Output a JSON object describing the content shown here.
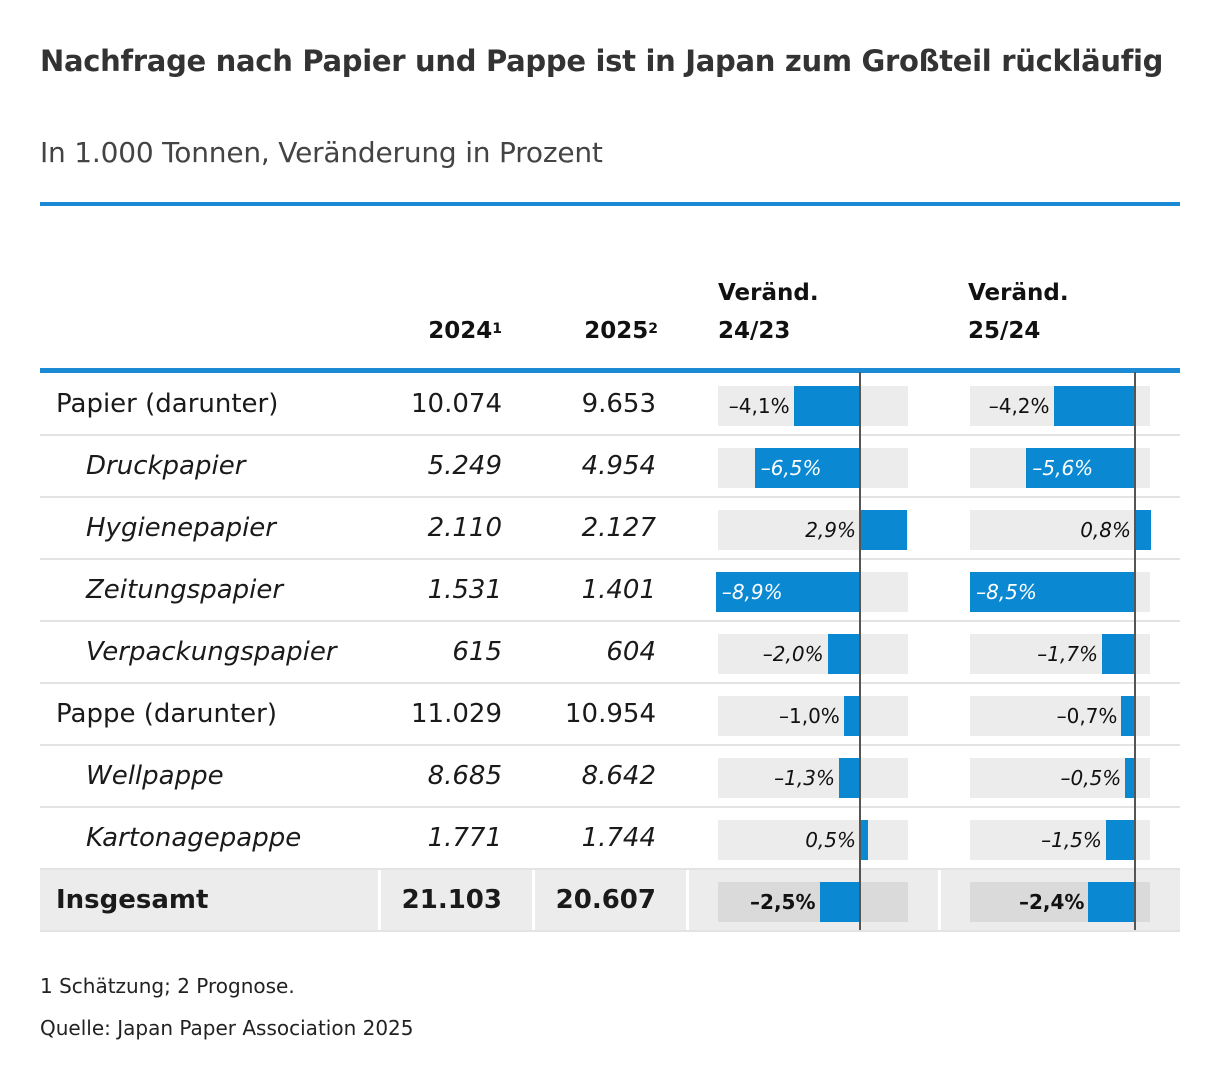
{
  "title": "Nachfrage nach Papier und Pappe ist in Japan zum Großteil rückläufig",
  "subtitle": "In 1.000 Tonnen, Veränderung in Prozent",
  "headers": {
    "col_2024": "2024",
    "col_2024_sup": "1",
    "col_2025": "2025",
    "col_2025_sup": "2",
    "chg1_line1": "Veränd.",
    "chg1_line2": "24/23",
    "chg2_line1": "Veränd.",
    "chg2_line2": "25/24"
  },
  "footnote": "1 Schätzung; 2 Prognose.",
  "source": "Quelle: Japan Paper Association 2025",
  "colors": {
    "accent": "#1a8ad4",
    "bar": "#0a89d2",
    "track": "#ececec"
  },
  "chart_data": {
    "type": "table",
    "columns": [
      "",
      "2024",
      "2025",
      "Veränd. 24/23",
      "Veränd. 25/24"
    ],
    "rows": [
      {
        "name": "Papier (darunter)",
        "style": "group",
        "v2024": "10.074",
        "v2025": "9.653",
        "chg1": -4.1,
        "chg1_label": "–4,1%",
        "chg2": -4.2,
        "chg2_label": "–4,2%"
      },
      {
        "name": "Druckpapier",
        "style": "sub",
        "v2024": "5.249",
        "v2025": "4.954",
        "chg1": -6.5,
        "chg1_label": "–6,5%",
        "chg2": -5.6,
        "chg2_label": "–5,6%"
      },
      {
        "name": "Hygienepapier",
        "style": "sub",
        "v2024": "2.110",
        "v2025": "2.127",
        "chg1": 2.9,
        "chg1_label": "2,9%",
        "chg2": 0.8,
        "chg2_label": "0,8%"
      },
      {
        "name": "Zeitungspapier",
        "style": "sub",
        "v2024": "1.531",
        "v2025": "1.401",
        "chg1": -8.9,
        "chg1_label": "–8,9%",
        "chg2": -8.5,
        "chg2_label": "–8,5%"
      },
      {
        "name": "Verpackungspapier",
        "style": "sub",
        "v2024": "615",
        "v2025": "604",
        "chg1": -2.0,
        "chg1_label": "–2,0%",
        "chg2": -1.7,
        "chg2_label": "–1,7%"
      },
      {
        "name": "Pappe (darunter)",
        "style": "group",
        "v2024": "11.029",
        "v2025": "10.954",
        "chg1": -1.0,
        "chg1_label": "–1,0%",
        "chg2": -0.7,
        "chg2_label": "–0,7%"
      },
      {
        "name": "Wellpappe",
        "style": "sub",
        "v2024": "8.685",
        "v2025": "8.642",
        "chg1": -1.3,
        "chg1_label": "–1,3%",
        "chg2": -0.5,
        "chg2_label": "–0,5%"
      },
      {
        "name": "Kartonagepappe",
        "style": "sub",
        "v2024": "1.771",
        "v2025": "1.744",
        "chg1": 0.5,
        "chg1_label": "0,5%",
        "chg2": -1.5,
        "chg2_label": "–1,5%"
      },
      {
        "name": "Insgesamt",
        "style": "total",
        "v2024": "21.103",
        "v2025": "20.607",
        "chg1": -2.5,
        "chg1_label": "–2,5%",
        "chg2": -2.4,
        "chg2_label": "–2,4%"
      }
    ],
    "chg1_range": [
      -8.9,
      2.9
    ],
    "chg2_range": [
      -8.5,
      0.8
    ]
  }
}
